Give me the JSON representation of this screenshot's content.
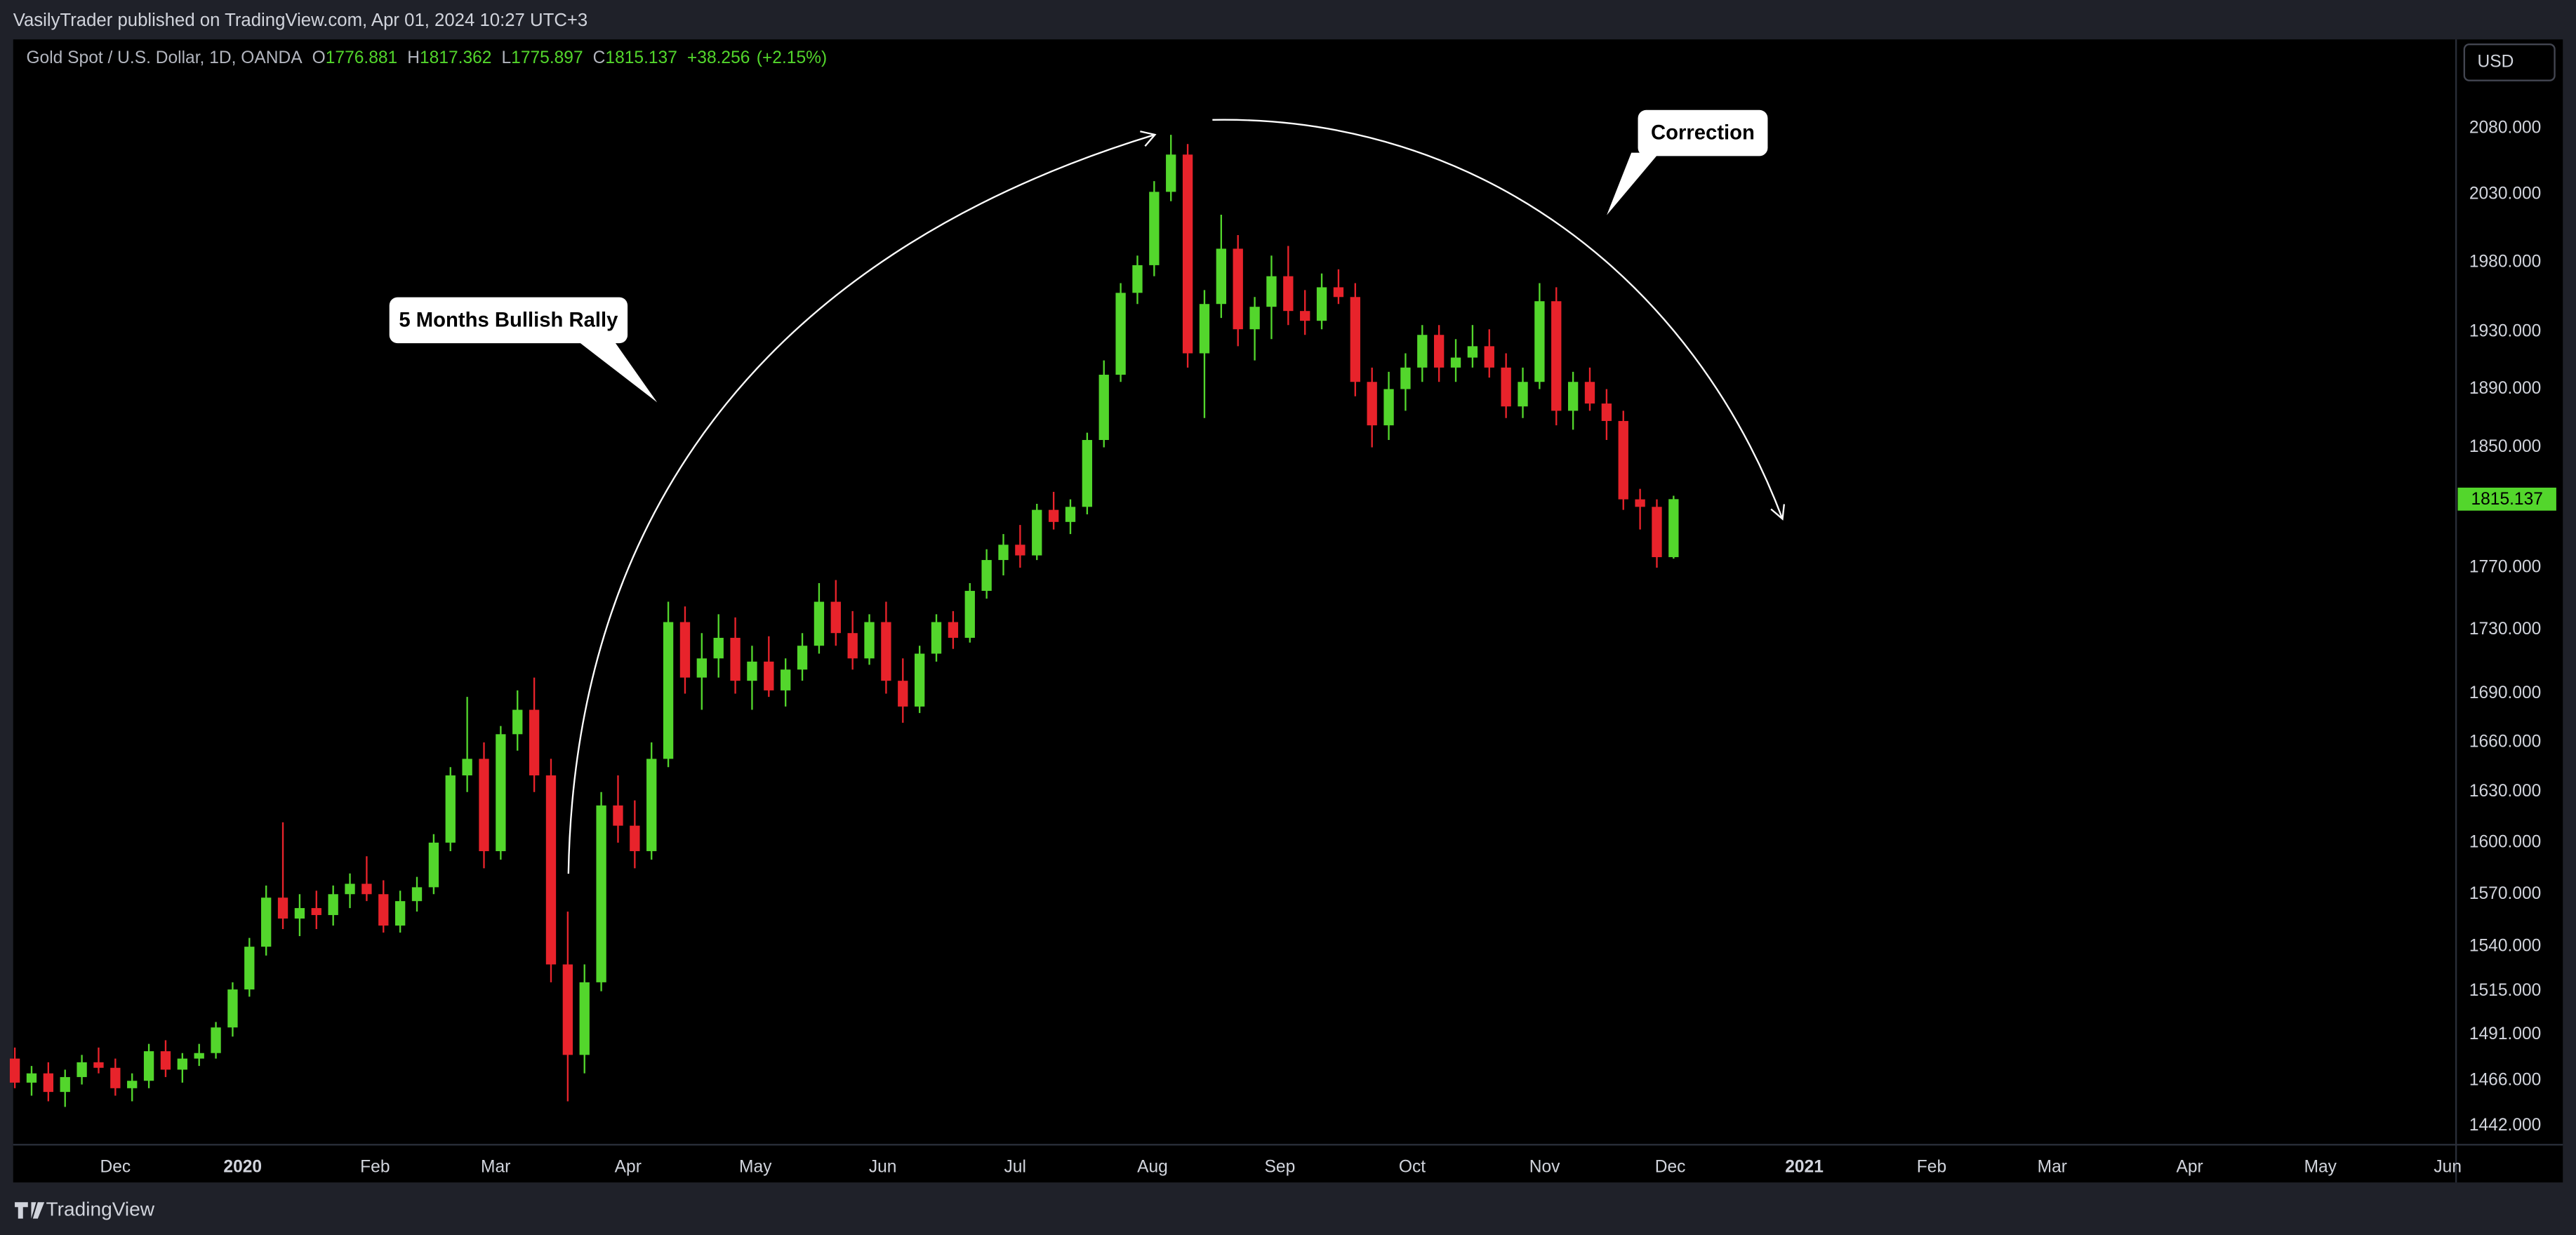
{
  "published": "VasilyTrader published on TradingView.com, Apr 01, 2024 10:27 UTC+3",
  "brand": "TradingView",
  "currency": "USD",
  "chart_data": {
    "type": "candlestick",
    "title": "Gold Spot / U.S. Dollar, 1D, OANDA",
    "ohlc_labels": [
      "O",
      "H",
      "L",
      "C"
    ],
    "change": "+38.256",
    "change_percent": "(+2.15%)",
    "up_color": "#53d62c",
    "down_color": "#e8232b",
    "log_scale": true,
    "grid": false,
    "annotations": [
      "5 Months Bullish Rally",
      "Correction"
    ],
    "xlim": [
      -0.1,
      145.7
    ],
    "xticks": [
      {
        "value": 6.0,
        "label": "Dec"
      },
      {
        "value": 13.6,
        "label": "2020"
      },
      {
        "value": 21.5,
        "label": "Feb"
      },
      {
        "value": 28.7,
        "label": "Mar"
      },
      {
        "value": 36.6,
        "label": "Apr"
      },
      {
        "value": 44.2,
        "label": "May"
      },
      {
        "value": 51.8,
        "label": "Jun"
      },
      {
        "value": 59.7,
        "label": "Jul"
      },
      {
        "value": 67.9,
        "label": "Aug"
      },
      {
        "value": 75.5,
        "label": "Sep"
      },
      {
        "value": 83.4,
        "label": "Oct"
      },
      {
        "value": 91.3,
        "label": "Nov"
      },
      {
        "value": 98.8,
        "label": "Dec"
      },
      {
        "value": 106.8,
        "label": "2021"
      },
      {
        "value": 114.4,
        "label": "Feb"
      },
      {
        "value": 121.6,
        "label": "Mar"
      },
      {
        "value": 129.8,
        "label": "Apr"
      },
      {
        "value": 137.6,
        "label": "May"
      },
      {
        "value": 145.2,
        "label": "Jun"
      }
    ],
    "ylim": [
      1432,
      2149
    ],
    "yticks": [
      {
        "value": 2080,
        "label": "2080.000"
      },
      {
        "value": 2030,
        "label": "2030.000"
      },
      {
        "value": 1980,
        "label": "1980.000"
      },
      {
        "value": 1930,
        "label": "1930.000"
      },
      {
        "value": 1890,
        "label": "1890.000"
      },
      {
        "value": 1850,
        "label": "1850.000"
      },
      {
        "value": 1770,
        "label": "1770.000"
      },
      {
        "value": 1730,
        "label": "1730.000"
      },
      {
        "value": 1690,
        "label": "1690.000"
      },
      {
        "value": 1660,
        "label": "1660.000"
      },
      {
        "value": 1630,
        "label": "1630.000"
      },
      {
        "value": 1600,
        "label": "1600.000"
      },
      {
        "value": 1570,
        "label": "1570.000"
      },
      {
        "value": 1540,
        "label": "1540.000"
      },
      {
        "value": 1515,
        "label": "1515.000"
      },
      {
        "value": 1491,
        "label": "1491.000"
      },
      {
        "value": 1466,
        "label": "1466.000"
      },
      {
        "value": 1442,
        "label": "1442.000"
      }
    ],
    "candles": [
      [
        1478,
        1484,
        1462,
        1465
      ],
      [
        1465,
        1474,
        1458,
        1470
      ],
      [
        1470,
        1476,
        1455,
        1460
      ],
      [
        1460,
        1472,
        1452,
        1468
      ],
      [
        1468,
        1480,
        1464,
        1476
      ],
      [
        1476,
        1484,
        1470,
        1473
      ],
      [
        1473,
        1478,
        1458,
        1462
      ],
      [
        1462,
        1470,
        1455,
        1466
      ],
      [
        1466,
        1486,
        1462,
        1482
      ],
      [
        1482,
        1488,
        1468,
        1472
      ],
      [
        1472,
        1481,
        1465,
        1478
      ],
      [
        1478,
        1486,
        1474,
        1481
      ],
      [
        1481,
        1498,
        1478,
        1495
      ],
      [
        1495,
        1520,
        1490,
        1516
      ],
      [
        1516,
        1545,
        1512,
        1540
      ],
      [
        1540,
        1575,
        1535,
        1568
      ],
      [
        1568,
        1612,
        1550,
        1556
      ],
      [
        1556,
        1570,
        1546,
        1562
      ],
      [
        1562,
        1572,
        1550,
        1558
      ],
      [
        1558,
        1575,
        1552,
        1570
      ],
      [
        1570,
        1582,
        1562,
        1576
      ],
      [
        1576,
        1592,
        1566,
        1570
      ],
      [
        1570,
        1578,
        1548,
        1552
      ],
      [
        1552,
        1572,
        1548,
        1566
      ],
      [
        1566,
        1580,
        1560,
        1574
      ],
      [
        1574,
        1605,
        1570,
        1600
      ],
      [
        1600,
        1645,
        1595,
        1640
      ],
      [
        1640,
        1688,
        1630,
        1650
      ],
      [
        1650,
        1660,
        1585,
        1595
      ],
      [
        1595,
        1670,
        1590,
        1665
      ],
      [
        1665,
        1692,
        1655,
        1680
      ],
      [
        1680,
        1700,
        1630,
        1640
      ],
      [
        1640,
        1650,
        1520,
        1530
      ],
      [
        1530,
        1560,
        1455,
        1480
      ],
      [
        1480,
        1530,
        1470,
        1520
      ],
      [
        1520,
        1630,
        1515,
        1622
      ],
      [
        1622,
        1640,
        1600,
        1610
      ],
      [
        1610,
        1625,
        1585,
        1595
      ],
      [
        1595,
        1660,
        1590,
        1650
      ],
      [
        1650,
        1748,
        1645,
        1735
      ],
      [
        1735,
        1745,
        1690,
        1700
      ],
      [
        1700,
        1728,
        1680,
        1712
      ],
      [
        1712,
        1740,
        1700,
        1725
      ],
      [
        1725,
        1738,
        1690,
        1698
      ],
      [
        1698,
        1720,
        1680,
        1710
      ],
      [
        1710,
        1726,
        1688,
        1692
      ],
      [
        1692,
        1712,
        1682,
        1705
      ],
      [
        1705,
        1728,
        1698,
        1720
      ],
      [
        1720,
        1760,
        1715,
        1748
      ],
      [
        1748,
        1762,
        1720,
        1728
      ],
      [
        1728,
        1742,
        1705,
        1712
      ],
      [
        1712,
        1740,
        1708,
        1735
      ],
      [
        1735,
        1748,
        1690,
        1698
      ],
      [
        1698,
        1712,
        1672,
        1682
      ],
      [
        1682,
        1720,
        1678,
        1715
      ],
      [
        1715,
        1740,
        1710,
        1735
      ],
      [
        1735,
        1742,
        1718,
        1725
      ],
      [
        1725,
        1760,
        1722,
        1755
      ],
      [
        1755,
        1782,
        1750,
        1775
      ],
      [
        1775,
        1792,
        1765,
        1785
      ],
      [
        1785,
        1798,
        1770,
        1778
      ],
      [
        1778,
        1812,
        1775,
        1808
      ],
      [
        1808,
        1820,
        1795,
        1800
      ],
      [
        1800,
        1815,
        1792,
        1810
      ],
      [
        1810,
        1860,
        1805,
        1855
      ],
      [
        1855,
        1910,
        1850,
        1900
      ],
      [
        1900,
        1965,
        1895,
        1958
      ],
      [
        1958,
        1985,
        1950,
        1978
      ],
      [
        1978,
        2040,
        1970,
        2032
      ],
      [
        2032,
        2075,
        2025,
        2060
      ],
      [
        2060,
        2068,
        1905,
        1915
      ],
      [
        1915,
        1960,
        1870,
        1950
      ],
      [
        1950,
        2015,
        1940,
        1990
      ],
      [
        1990,
        2000,
        1920,
        1932
      ],
      [
        1932,
        1955,
        1910,
        1948
      ],
      [
        1948,
        1985,
        1925,
        1970
      ],
      [
        1970,
        1992,
        1935,
        1945
      ],
      [
        1945,
        1960,
        1928,
        1938
      ],
      [
        1938,
        1972,
        1932,
        1962
      ],
      [
        1962,
        1975,
        1950,
        1955
      ],
      [
        1955,
        1965,
        1885,
        1895
      ],
      [
        1895,
        1905,
        1850,
        1865
      ],
      [
        1865,
        1902,
        1855,
        1890
      ],
      [
        1890,
        1915,
        1875,
        1905
      ],
      [
        1905,
        1935,
        1895,
        1928
      ],
      [
        1928,
        1935,
        1895,
        1905
      ],
      [
        1905,
        1925,
        1895,
        1912
      ],
      [
        1912,
        1935,
        1905,
        1920
      ],
      [
        1920,
        1932,
        1898,
        1905
      ],
      [
        1905,
        1915,
        1870,
        1878
      ],
      [
        1878,
        1905,
        1870,
        1895
      ],
      [
        1895,
        1965,
        1890,
        1952
      ],
      [
        1952,
        1962,
        1865,
        1875
      ],
      [
        1875,
        1902,
        1862,
        1895
      ],
      [
        1895,
        1905,
        1875,
        1880
      ],
      [
        1880,
        1890,
        1855,
        1868
      ],
      [
        1868,
        1875,
        1808,
        1815
      ],
      [
        1815,
        1822,
        1795,
        1810
      ],
      [
        1810,
        1815,
        1770,
        1776.881
      ],
      [
        1776.881,
        1817.362,
        1775.897,
        1815.137
      ]
    ]
  }
}
